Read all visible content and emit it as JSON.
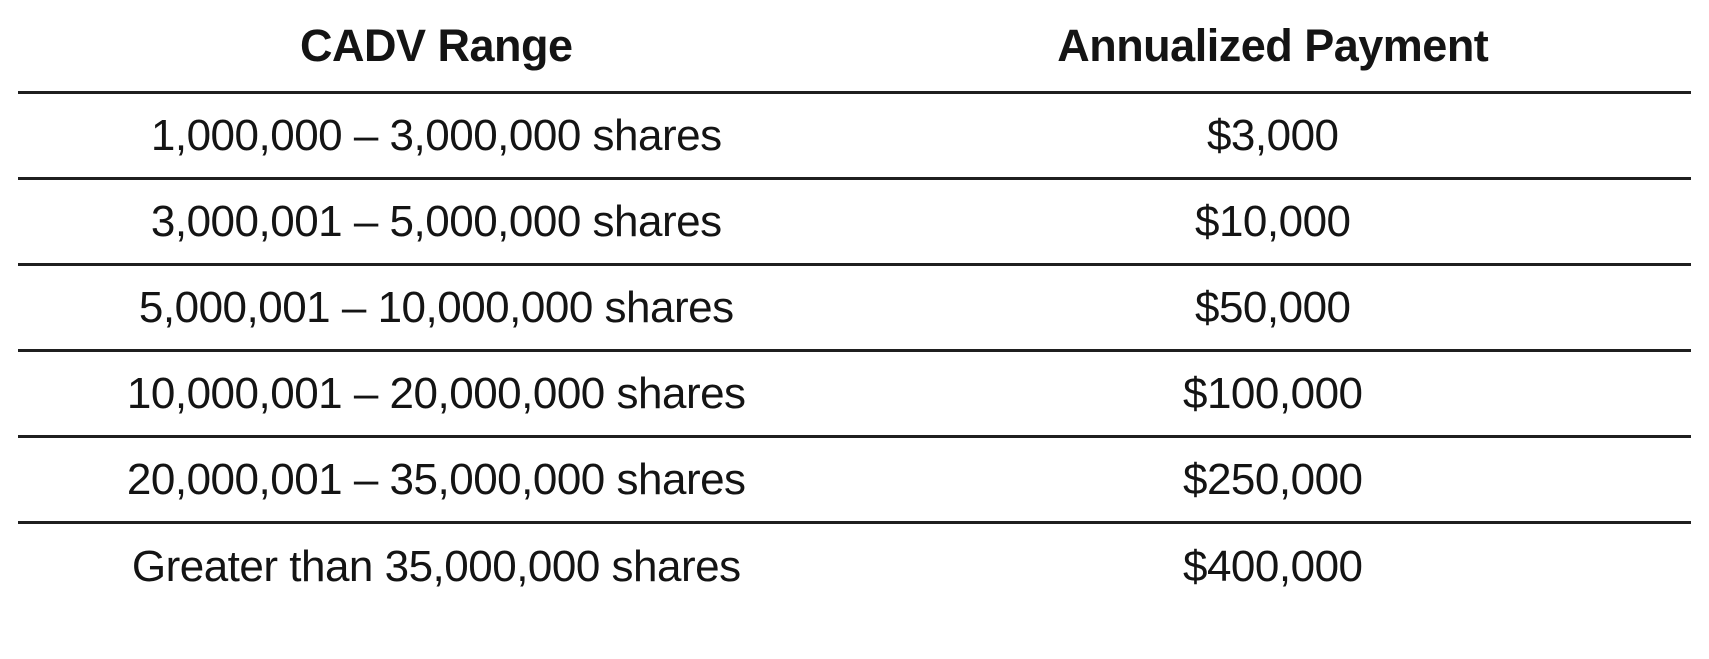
{
  "table": {
    "columns": [
      {
        "label": "CADV Range"
      },
      {
        "label": "Annualized Payment"
      }
    ],
    "rows": [
      {
        "range": "1,000,000 – 3,000,000 shares",
        "payment": "$3,000"
      },
      {
        "range": "3,000,001 – 5,000,000 shares",
        "payment": "$10,000"
      },
      {
        "range": "5,000,001 – 10,000,000 shares",
        "payment": "$50,000"
      },
      {
        "range": "10,000,001 – 20,000,000 shares",
        "payment": "$100,000"
      },
      {
        "range": "20,000,001 – 35,000,000 shares",
        "payment": "$250,000"
      },
      {
        "range": "Greater than 35,000,000 shares",
        "payment": "$400,000"
      }
    ],
    "colors": {
      "text": "#141414",
      "line": "#1f1f1f",
      "background": "#ffffff"
    }
  }
}
